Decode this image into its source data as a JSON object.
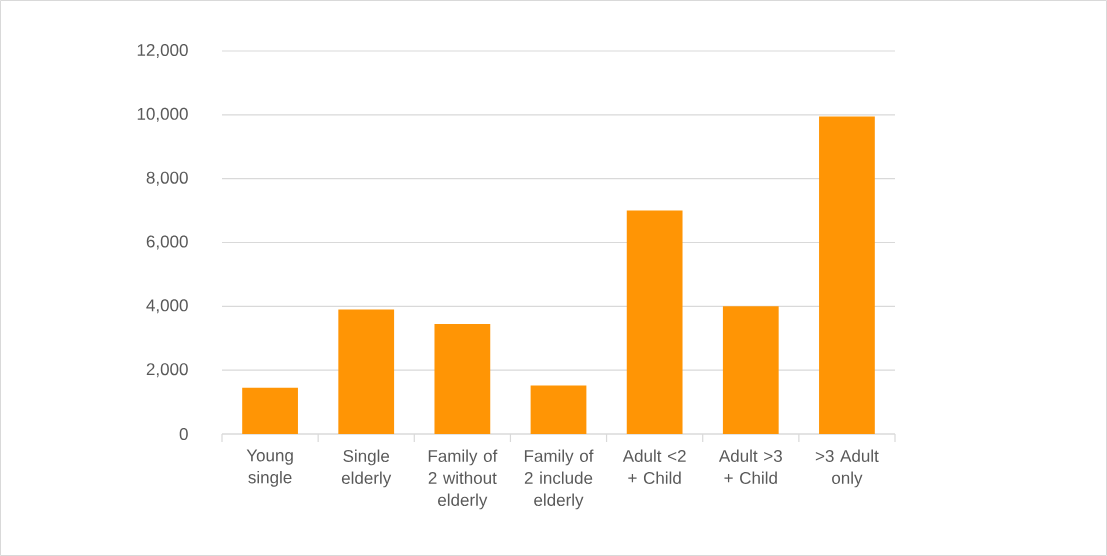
{
  "chart_data": {
    "type": "bar",
    "categories": [
      "Young single",
      "Single elderly",
      "Family of 2 without elderly",
      "Family of 2 include elderly",
      "Adult <2 + Child",
      "Adult >3 + Child",
      ">3 Adult only"
    ],
    "values": [
      1450,
      3900,
      3450,
      1520,
      7000,
      4000,
      9950
    ],
    "color": "#ff9505",
    "ylim": [
      0,
      12000
    ],
    "yticks": [
      0,
      {
        "value": 2000,
        "label": "2,000"
      },
      {
        "value": 4000,
        "label": "4,000"
      },
      {
        "value": 6000,
        "label": "6,000"
      },
      {
        "value": 8000,
        "label": "8,000"
      },
      {
        "value": 10000,
        "label": "10,000"
      },
      {
        "value": 12000,
        "label": "12,000"
      }
    ],
    "grid": "y"
  }
}
